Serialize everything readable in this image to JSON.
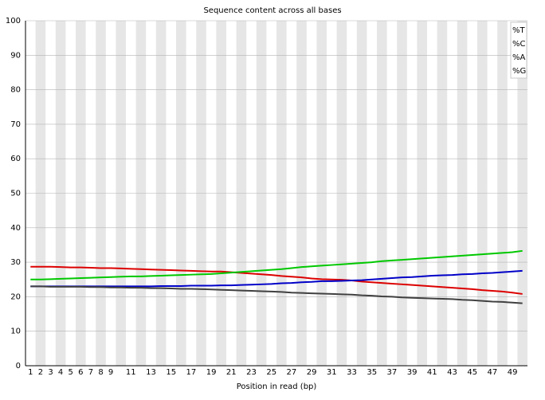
{
  "chart_data": {
    "type": "line",
    "title": "Sequence content across all bases",
    "xlabel": "Position in read (bp)",
    "categories": [
      "1",
      "2",
      "3",
      "4",
      "5",
      "6",
      "7",
      "8",
      "9",
      null,
      "11",
      null,
      "13",
      null,
      "15",
      null,
      "17",
      null,
      "19",
      null,
      "21",
      null,
      "23",
      null,
      "25",
      null,
      "27",
      null,
      "29",
      null,
      "31",
      null,
      "33",
      null,
      "35",
      null,
      "37",
      null,
      "39",
      null,
      "41",
      null,
      "43",
      null,
      "45",
      null,
      "47",
      null,
      "49",
      null
    ],
    "ylim": [
      0,
      100
    ],
    "yticks": [
      0,
      10,
      20,
      30,
      40,
      50,
      60,
      70,
      80,
      90,
      100
    ],
    "grid": true,
    "legend": "top-right",
    "series": [
      {
        "name": "%T",
        "color": "#dc0000",
        "values": [
          28.7,
          28.7,
          28.7,
          28.6,
          28.5,
          28.5,
          28.4,
          28.3,
          28.3,
          28.2,
          28.1,
          28.0,
          27.9,
          27.8,
          27.7,
          27.6,
          27.5,
          27.4,
          27.3,
          27.3,
          27.1,
          26.9,
          26.7,
          26.5,
          26.3,
          26.0,
          25.8,
          25.6,
          25.3,
          25.1,
          25.0,
          24.9,
          24.7,
          24.4,
          24.2,
          24.0,
          23.8,
          23.6,
          23.4,
          23.2,
          23.0,
          22.8,
          22.6,
          22.4,
          22.2,
          21.9,
          21.7,
          21.5,
          21.2,
          20.8
        ]
      },
      {
        "name": "%C",
        "color": "#0000c8",
        "values": [
          23.0,
          23.0,
          23.0,
          23.0,
          23.0,
          23.0,
          23.0,
          23.0,
          23.0,
          23.0,
          23.0,
          23.0,
          23.0,
          23.1,
          23.1,
          23.1,
          23.2,
          23.2,
          23.2,
          23.3,
          23.3,
          23.4,
          23.5,
          23.6,
          23.7,
          23.9,
          24.0,
          24.2,
          24.3,
          24.5,
          24.5,
          24.6,
          24.7,
          24.8,
          25.0,
          25.2,
          25.4,
          25.6,
          25.7,
          25.9,
          26.1,
          26.2,
          26.3,
          26.5,
          26.6,
          26.8,
          26.9,
          27.1,
          27.3,
          27.5
        ]
      },
      {
        "name": "%A",
        "color": "#00c800",
        "values": [
          25.0,
          25.0,
          25.1,
          25.2,
          25.3,
          25.4,
          25.5,
          25.6,
          25.7,
          25.8,
          25.9,
          25.9,
          26.0,
          26.1,
          26.2,
          26.3,
          26.4,
          26.5,
          26.6,
          26.8,
          27.0,
          27.2,
          27.4,
          27.6,
          27.8,
          28.0,
          28.3,
          28.6,
          28.8,
          29.0,
          29.2,
          29.4,
          29.6,
          29.8,
          30.0,
          30.3,
          30.5,
          30.7,
          30.9,
          31.1,
          31.3,
          31.5,
          31.7,
          31.9,
          32.1,
          32.3,
          32.5,
          32.7,
          32.9,
          33.3
        ]
      },
      {
        "name": "%G",
        "color": "#404040",
        "values": [
          23.0,
          23.0,
          22.9,
          22.9,
          22.9,
          22.9,
          22.8,
          22.8,
          22.7,
          22.7,
          22.6,
          22.6,
          22.5,
          22.5,
          22.4,
          22.3,
          22.3,
          22.2,
          22.1,
          22.0,
          21.9,
          21.8,
          21.7,
          21.6,
          21.5,
          21.4,
          21.2,
          21.1,
          21.0,
          20.9,
          20.8,
          20.7,
          20.6,
          20.4,
          20.3,
          20.1,
          20.0,
          19.8,
          19.7,
          19.6,
          19.5,
          19.4,
          19.3,
          19.1,
          19.0,
          18.8,
          18.6,
          18.5,
          18.3,
          18.1
        ]
      }
    ]
  }
}
